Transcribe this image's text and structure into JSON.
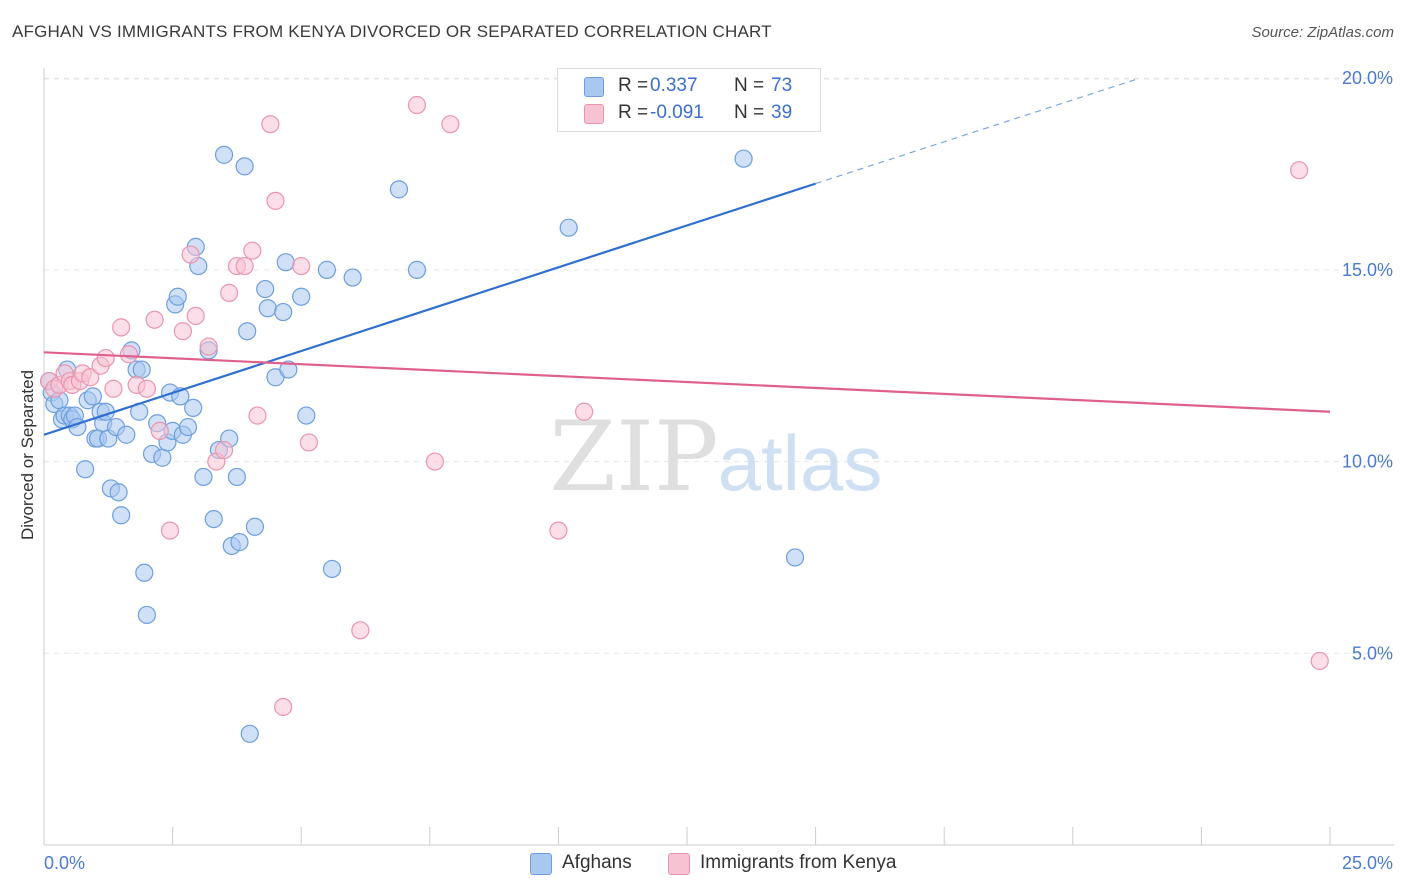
{
  "title": "AFGHAN VS IMMIGRANTS FROM KENYA DIVORCED OR SEPARATED CORRELATION CHART",
  "source": "Source: ZipAtlas.com",
  "watermark": {
    "zip": "ZIP",
    "atlas": "atlas"
  },
  "stats": [
    {
      "r_label": "R =",
      "r_value": "0.337",
      "n_label": "N =",
      "n_value": "73",
      "color": "#a9c8f0",
      "border": "#6d9ee0"
    },
    {
      "r_label": "R =",
      "r_value": "-0.091",
      "n_label": "N =",
      "n_value": "39",
      "color": "#f7c3d3",
      "border": "#e995b0"
    }
  ],
  "legend": [
    {
      "label": "Afghans",
      "color": "#a9c8f0",
      "border": "#6d9ee0"
    },
    {
      "label": "Immigrants from Kenya",
      "color": "#f7c3d3",
      "border": "#e995b0"
    }
  ],
  "chart_data": {
    "type": "scatter",
    "title": "AFGHAN VS IMMIGRANTS FROM KENYA DIVORCED OR SEPARATED CORRELATION CHART",
    "xlabel": "",
    "ylabel": "Divorced or Separated",
    "xlim": [
      0,
      25
    ],
    "ylim": [
      0,
      20.5
    ],
    "x_tick_labels": [
      {
        "value": 0,
        "label": "0.0%"
      },
      {
        "value": 25,
        "label": "25.0%"
      }
    ],
    "y_tick_labels": [
      {
        "value": 5,
        "label": "5.0%"
      },
      {
        "value": 10,
        "label": "10.0%"
      },
      {
        "value": 15,
        "label": "15.0%"
      },
      {
        "value": 20,
        "label": "20.0%"
      }
    ],
    "grid": true,
    "legend_position": "bottom-center",
    "series": [
      {
        "name": "Afghans",
        "color": "#6d9ee0",
        "fill": "#a9c8f0",
        "trend": {
          "x": [
            0,
            15
          ],
          "y": [
            10.7,
            17.25
          ],
          "dashed_extension_to": [
            21.3,
            20.0
          ]
        },
        "points": [
          [
            0.1,
            12.1
          ],
          [
            0.15,
            11.8
          ],
          [
            0.2,
            11.5
          ],
          [
            0.3,
            11.6
          ],
          [
            0.35,
            11.1
          ],
          [
            0.4,
            11.2
          ],
          [
            0.45,
            12.4
          ],
          [
            0.5,
            11.2
          ],
          [
            0.55,
            11.1
          ],
          [
            0.6,
            11.2
          ],
          [
            0.65,
            10.9
          ],
          [
            0.8,
            9.8
          ],
          [
            0.85,
            11.6
          ],
          [
            0.95,
            11.7
          ],
          [
            1.0,
            10.6
          ],
          [
            1.1,
            11.3
          ],
          [
            1.15,
            11.0
          ],
          [
            1.2,
            11.3
          ],
          [
            1.05,
            10.6
          ],
          [
            1.25,
            10.6
          ],
          [
            1.3,
            9.3
          ],
          [
            1.4,
            10.9
          ],
          [
            1.45,
            9.2
          ],
          [
            1.5,
            8.6
          ],
          [
            1.6,
            10.7
          ],
          [
            1.7,
            12.9
          ],
          [
            1.8,
            12.4
          ],
          [
            1.85,
            11.3
          ],
          [
            1.9,
            12.4
          ],
          [
            1.95,
            7.1
          ],
          [
            2.0,
            6.0
          ],
          [
            2.1,
            10.2
          ],
          [
            2.2,
            11.0
          ],
          [
            2.3,
            10.1
          ],
          [
            2.4,
            10.5
          ],
          [
            2.45,
            11.8
          ],
          [
            2.5,
            10.8
          ],
          [
            2.55,
            14.1
          ],
          [
            2.6,
            14.3
          ],
          [
            2.65,
            11.7
          ],
          [
            2.7,
            10.7
          ],
          [
            2.8,
            10.9
          ],
          [
            2.9,
            11.4
          ],
          [
            2.95,
            15.6
          ],
          [
            3.0,
            15.1
          ],
          [
            3.1,
            9.6
          ],
          [
            3.2,
            12.9
          ],
          [
            3.3,
            8.5
          ],
          [
            3.4,
            10.3
          ],
          [
            3.6,
            10.6
          ],
          [
            3.5,
            18.0
          ],
          [
            3.65,
            7.8
          ],
          [
            3.75,
            9.6
          ],
          [
            3.8,
            7.9
          ],
          [
            3.9,
            17.7
          ],
          [
            3.95,
            13.4
          ],
          [
            4.1,
            8.3
          ],
          [
            4.0,
            2.9
          ],
          [
            4.3,
            14.5
          ],
          [
            4.35,
            14.0
          ],
          [
            4.5,
            12.2
          ],
          [
            4.65,
            13.9
          ],
          [
            4.75,
            12.4
          ],
          [
            4.7,
            15.2
          ],
          [
            5.0,
            14.3
          ],
          [
            5.1,
            11.2
          ],
          [
            5.5,
            15.0
          ],
          [
            5.6,
            7.2
          ],
          [
            6.0,
            14.8
          ],
          [
            6.9,
            17.1
          ],
          [
            7.25,
            15.0
          ],
          [
            10.2,
            16.1
          ],
          [
            12.0,
            19.5
          ],
          [
            13.6,
            17.9
          ],
          [
            14.6,
            7.5
          ]
        ]
      },
      {
        "name": "Immigrants from Kenya",
        "color": "#e995b0",
        "fill": "#f7c3d3",
        "trend": {
          "x": [
            0,
            25
          ],
          "y": [
            12.85,
            11.3
          ]
        },
        "points": [
          [
            0.1,
            12.1
          ],
          [
            0.2,
            11.9
          ],
          [
            0.3,
            12.0
          ],
          [
            0.4,
            12.3
          ],
          [
            0.5,
            12.1
          ],
          [
            0.55,
            12.0
          ],
          [
            0.7,
            12.1
          ],
          [
            0.75,
            12.3
          ],
          [
            0.9,
            12.2
          ],
          [
            1.1,
            12.5
          ],
          [
            1.2,
            12.7
          ],
          [
            1.35,
            11.9
          ],
          [
            1.5,
            13.5
          ],
          [
            1.65,
            12.8
          ],
          [
            1.8,
            12.0
          ],
          [
            2.0,
            11.9
          ],
          [
            2.15,
            13.7
          ],
          [
            2.25,
            10.8
          ],
          [
            2.45,
            8.2
          ],
          [
            2.7,
            13.4
          ],
          [
            2.85,
            15.4
          ],
          [
            2.95,
            13.8
          ],
          [
            3.2,
            13.0
          ],
          [
            3.35,
            10.0
          ],
          [
            3.5,
            10.3
          ],
          [
            3.6,
            14.4
          ],
          [
            3.75,
            15.1
          ],
          [
            3.9,
            15.1
          ],
          [
            4.05,
            15.5
          ],
          [
            4.15,
            11.2
          ],
          [
            4.4,
            18.8
          ],
          [
            4.5,
            16.8
          ],
          [
            4.65,
            3.6
          ],
          [
            5.0,
            15.1
          ],
          [
            5.15,
            10.5
          ],
          [
            6.15,
            5.6
          ],
          [
            7.25,
            19.3
          ],
          [
            7.6,
            10.0
          ],
          [
            7.9,
            18.8
          ],
          [
            10.0,
            8.2
          ],
          [
            10.5,
            11.3
          ],
          [
            24.4,
            17.6
          ],
          [
            24.8,
            4.8
          ]
        ]
      }
    ]
  }
}
